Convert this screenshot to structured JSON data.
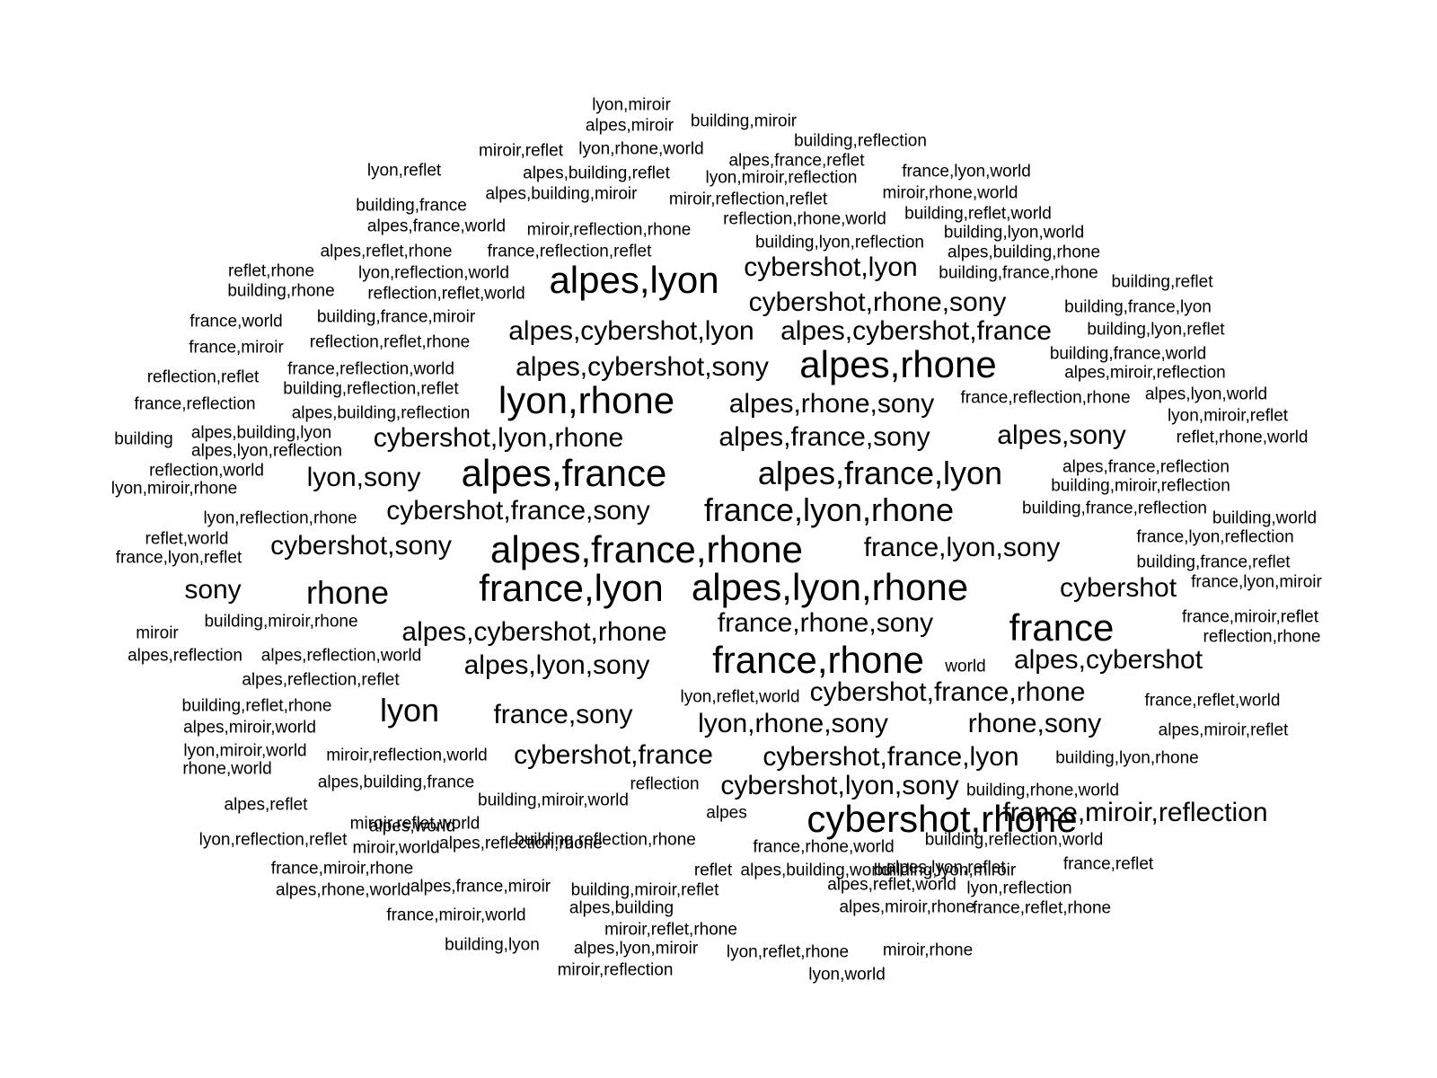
{
  "text_color": "#000000",
  "background_color": "#ffffff",
  "words": [
    "lyon,miroir",
    "alpes,miroir",
    "building,miroir",
    "building,reflection",
    "miroir,reflet",
    "lyon,rhone,world",
    "alpes,france,reflet",
    "lyon,reflet",
    "alpes,building,reflet",
    "lyon,miroir,reflection",
    "france,lyon,world",
    "alpes,building,miroir",
    "miroir,reflection,reflet",
    "miroir,rhone,world",
    "building,france",
    "building,reflet,world",
    "alpes,france,world",
    "miroir,reflection,rhone",
    "reflection,rhone,world",
    "building,lyon,world",
    "building,lyon,reflection",
    "alpes,reflet,rhone",
    "france,reflection,reflet",
    "alpes,building,rhone",
    "reflet,rhone",
    "lyon,reflection,world",
    "cybershot,lyon",
    "building,france,rhone",
    "alpes,lyon",
    "building,reflet",
    "building,rhone",
    "reflection,reflet,world",
    "cybershot,rhone,sony",
    "building,france,lyon",
    "france,world",
    "building,france,miroir",
    "alpes,cybershot,lyon",
    "alpes,cybershot,france",
    "building,lyon,reflet",
    "france,miroir",
    "reflection,reflet,rhone",
    "building,france,world",
    "alpes,rhone",
    "reflection,reflet",
    "france,reflection,world",
    "alpes,cybershot,sony",
    "alpes,miroir,reflection",
    "building,reflection,reflet",
    "france,reflection",
    "lyon,rhone",
    "alpes,rhone,sony",
    "france,reflection,rhone",
    "alpes,lyon,world",
    "alpes,building,reflection",
    "lyon,miroir,reflet",
    "building",
    "alpes,building,lyon",
    "cybershot,lyon,rhone",
    "alpes,france,sony",
    "alpes,sony",
    "reflet,rhone,world",
    "alpes,lyon,reflection",
    "alpes,france,reflection",
    "reflection,world",
    "lyon,sony",
    "alpes,france",
    "alpes,france,lyon",
    "building,miroir,reflection",
    "lyon,miroir,rhone",
    "building,france,reflection",
    "cybershot,france,sony",
    "france,lyon,rhone",
    "lyon,reflection,rhone",
    "building,world",
    "reflet,world",
    "france,lyon,reflection",
    "cybershot,sony",
    "alpes,france,rhone",
    "france,lyon,sony",
    "france,lyon,reflet",
    "building,france,reflet",
    "sony",
    "rhone",
    "france,lyon",
    "alpes,lyon,rhone",
    "cybershot",
    "france,lyon,miroir",
    "building,miroir,rhone",
    "france,miroir,reflet",
    "france,rhone,sony",
    "france",
    "miroir",
    "alpes,cybershot,rhone",
    "reflection,rhone",
    "alpes,reflection",
    "alpes,reflection,world",
    "france,rhone",
    "world",
    "alpes,cybershot",
    "alpes,lyon,sony",
    "alpes,reflection,reflet",
    "lyon,reflet,world",
    "cybershot,france,rhone",
    "france,reflet,world",
    "building,reflet,rhone",
    "lyon",
    "france,sony",
    "lyon,rhone,sony",
    "rhone,sony",
    "alpes,miroir,world",
    "alpes,miroir,reflet",
    "lyon,miroir,world",
    "miroir,reflection,world",
    "cybershot,france",
    "cybershot,france,lyon",
    "building,lyon,rhone",
    "rhone,world",
    "alpes,building,france",
    "reflection",
    "cybershot,lyon,sony",
    "building,rhone,world",
    "alpes,reflet",
    "building,miroir,world",
    "alpes",
    "cybershot,rhone",
    "france,miroir,reflection",
    "miroir,reflet,world",
    "lyon,reflection,reflet",
    "alpes,world",
    "building,reflection,rhone",
    "france,rhone,world",
    "building,reflection,world",
    "france,miroir,rhone",
    "miroir,world",
    "building,lyon,miroir",
    "alpes,reflection,rhone",
    "reflet",
    "alpes,building,world",
    "alpes,lyon,reflet",
    "france,reflet",
    "alpes,rhone,world",
    "alpes,france,miroir",
    "building,miroir,reflet",
    "alpes,reflet,world",
    "lyon,reflection",
    "france,reflet,rhone",
    "france,miroir,world",
    "alpes,building",
    "miroir,reflet,rhone",
    "alpes,miroir,rhone",
    "building,lyon",
    "alpes,lyon,miroir",
    "lyon,reflet,rhone",
    "miroir,rhone",
    "miroir,reflection",
    "lyon,world"
  ],
  "weights": [
    1,
    1,
    1,
    1,
    1,
    1,
    1,
    1,
    1,
    1,
    1,
    1,
    1,
    1,
    1,
    1,
    1,
    1,
    1,
    1,
    1,
    1,
    1,
    1,
    1,
    1,
    2,
    1,
    4,
    1,
    1,
    1,
    2,
    1,
    1,
    1,
    2,
    2,
    1,
    1,
    1,
    1,
    4,
    1,
    1,
    2,
    1,
    1,
    1,
    4,
    2,
    1,
    1,
    1,
    1,
    1,
    1,
    2,
    2,
    2,
    1,
    1,
    1,
    1,
    2,
    4,
    3,
    1,
    1,
    1,
    2,
    3,
    1,
    1,
    1,
    1,
    2,
    4,
    2,
    1,
    1,
    2,
    3,
    4,
    4,
    2,
    1,
    1,
    1,
    2,
    4,
    1,
    2,
    1,
    1,
    1,
    4,
    1,
    2,
    2,
    1,
    1,
    2,
    1,
    1,
    3,
    2,
    2,
    2,
    1,
    1,
    1,
    1,
    2,
    2,
    1,
    1,
    1,
    1,
    2,
    1,
    1,
    1,
    1,
    4,
    2,
    1,
    1,
    1,
    1,
    1,
    1,
    1,
    1,
    1,
    1,
    1,
    1,
    1,
    1,
    1,
    1,
    1,
    1,
    1,
    1,
    1,
    1,
    1,
    1,
    1,
    1,
    1,
    1,
    1,
    1,
    1,
    1,
    1
  ]
}
